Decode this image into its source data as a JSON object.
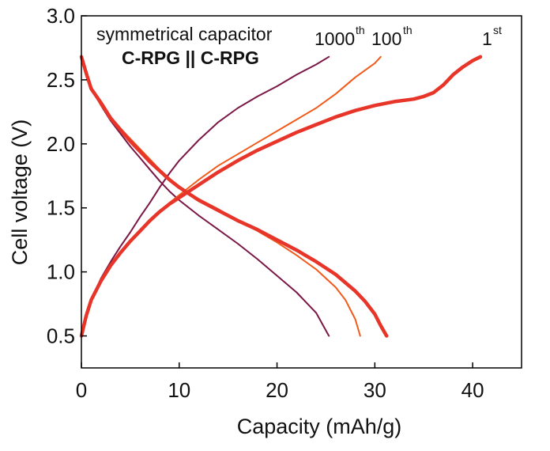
{
  "chart_data": {
    "type": "line",
    "xlabel": "Capacity (mAh/g)",
    "ylabel": "Cell voltage (V)",
    "xlim": [
      0,
      45
    ],
    "ylim": [
      0.25,
      3.0
    ],
    "xticks": [
      0,
      10,
      20,
      30,
      40
    ],
    "xtick_labels": [
      "0",
      "10",
      "20",
      "30",
      "40"
    ],
    "yticks": [
      0.5,
      1.0,
      1.5,
      2.0,
      2.5,
      3.0
    ],
    "ytick_labels": [
      "0.5",
      "1.0",
      "1.5",
      "2.0",
      "2.5",
      "3.0"
    ],
    "grid": false,
    "annotations": {
      "line1": "symmetrical capacitor",
      "line2": "C-RPG || C-RPG"
    },
    "cycle_labels": [
      {
        "base": "1000",
        "sup": "th"
      },
      {
        "base": "100",
        "sup": "th"
      },
      {
        "base": "1",
        "sup": "st"
      }
    ],
    "series": [
      {
        "color": "#7a1745",
        "width": 2,
        "charge": [
          [
            0,
            0.5
          ],
          [
            0.5,
            0.66
          ],
          [
            1,
            0.78
          ],
          [
            2,
            0.95
          ],
          [
            3,
            1.08
          ],
          [
            4,
            1.2
          ],
          [
            5,
            1.31
          ],
          [
            6,
            1.43
          ],
          [
            7,
            1.54
          ],
          [
            8,
            1.66
          ],
          [
            9,
            1.77
          ],
          [
            10,
            1.87
          ],
          [
            12,
            2.03
          ],
          [
            14,
            2.17
          ],
          [
            16,
            2.28
          ],
          [
            18,
            2.37
          ],
          [
            20,
            2.45
          ],
          [
            22,
            2.54
          ],
          [
            24,
            2.62
          ],
          [
            25.3,
            2.68
          ]
        ],
        "discharge": [
          [
            0,
            2.68
          ],
          [
            0.5,
            2.56
          ],
          [
            1,
            2.44
          ],
          [
            2,
            2.3
          ],
          [
            3,
            2.18
          ],
          [
            4,
            2.08
          ],
          [
            5,
            1.98
          ],
          [
            6,
            1.89
          ],
          [
            7,
            1.8
          ],
          [
            8,
            1.71
          ],
          [
            9,
            1.63
          ],
          [
            10,
            1.56
          ],
          [
            12,
            1.44
          ],
          [
            14,
            1.33
          ],
          [
            16,
            1.22
          ],
          [
            18,
            1.1
          ],
          [
            20,
            0.97
          ],
          [
            22,
            0.84
          ],
          [
            24,
            0.68
          ],
          [
            25.3,
            0.5
          ]
        ]
      },
      {
        "color": "#f05a1a",
        "width": 2,
        "charge": [
          [
            0,
            0.5
          ],
          [
            0.5,
            0.66
          ],
          [
            1,
            0.78
          ],
          [
            2,
            0.93
          ],
          [
            3,
            1.05
          ],
          [
            4,
            1.15
          ],
          [
            5,
            1.24
          ],
          [
            6,
            1.32
          ],
          [
            7,
            1.4
          ],
          [
            8,
            1.47
          ],
          [
            9,
            1.54
          ],
          [
            10,
            1.6
          ],
          [
            12,
            1.72
          ],
          [
            14,
            1.83
          ],
          [
            16,
            1.92
          ],
          [
            18,
            2.01
          ],
          [
            20,
            2.1
          ],
          [
            22,
            2.19
          ],
          [
            24,
            2.28
          ],
          [
            26,
            2.39
          ],
          [
            28,
            2.52
          ],
          [
            30,
            2.63
          ],
          [
            30.6,
            2.68
          ]
        ],
        "discharge": [
          [
            0,
            2.68
          ],
          [
            0.5,
            2.55
          ],
          [
            1,
            2.43
          ],
          [
            2,
            2.3
          ],
          [
            3,
            2.2
          ],
          [
            4,
            2.12
          ],
          [
            5,
            2.04
          ],
          [
            6,
            1.96
          ],
          [
            7,
            1.88
          ],
          [
            8,
            1.8
          ],
          [
            9,
            1.73
          ],
          [
            10,
            1.66
          ],
          [
            12,
            1.57
          ],
          [
            14,
            1.49
          ],
          [
            16,
            1.4
          ],
          [
            18,
            1.32
          ],
          [
            20,
            1.23
          ],
          [
            22,
            1.13
          ],
          [
            24,
            1.02
          ],
          [
            26,
            0.88
          ],
          [
            27,
            0.78
          ],
          [
            28,
            0.63
          ],
          [
            28.5,
            0.5
          ]
        ]
      },
      {
        "color": "#e8352a",
        "width": 4.5,
        "charge": [
          [
            0,
            0.5
          ],
          [
            0.5,
            0.66
          ],
          [
            1,
            0.78
          ],
          [
            2,
            0.93
          ],
          [
            3,
            1.05
          ],
          [
            4,
            1.15
          ],
          [
            5,
            1.24
          ],
          [
            6,
            1.32
          ],
          [
            7,
            1.4
          ],
          [
            8,
            1.47
          ],
          [
            9,
            1.53
          ],
          [
            10,
            1.58
          ],
          [
            12,
            1.68
          ],
          [
            14,
            1.78
          ],
          [
            16,
            1.87
          ],
          [
            18,
            1.95
          ],
          [
            20,
            2.02
          ],
          [
            22,
            2.09
          ],
          [
            24,
            2.15
          ],
          [
            26,
            2.21
          ],
          [
            28,
            2.26
          ],
          [
            30,
            2.3
          ],
          [
            32,
            2.33
          ],
          [
            34,
            2.35
          ],
          [
            35,
            2.37
          ],
          [
            36,
            2.4
          ],
          [
            37,
            2.46
          ],
          [
            38,
            2.54
          ],
          [
            39,
            2.6
          ],
          [
            40,
            2.65
          ],
          [
            40.8,
            2.68
          ]
        ],
        "discharge": [
          [
            0,
            2.68
          ],
          [
            0.5,
            2.55
          ],
          [
            1,
            2.43
          ],
          [
            2,
            2.32
          ],
          [
            3,
            2.2
          ],
          [
            4,
            2.11
          ],
          [
            5,
            2.02
          ],
          [
            6,
            1.94
          ],
          [
            7,
            1.86
          ],
          [
            8,
            1.79
          ],
          [
            9,
            1.72
          ],
          [
            10,
            1.66
          ],
          [
            12,
            1.56
          ],
          [
            14,
            1.48
          ],
          [
            16,
            1.4
          ],
          [
            18,
            1.33
          ],
          [
            20,
            1.25
          ],
          [
            22,
            1.17
          ],
          [
            24,
            1.08
          ],
          [
            26,
            0.98
          ],
          [
            28,
            0.85
          ],
          [
            29,
            0.77
          ],
          [
            30,
            0.67
          ],
          [
            30.6,
            0.58
          ],
          [
            31.2,
            0.5
          ]
        ]
      }
    ]
  }
}
